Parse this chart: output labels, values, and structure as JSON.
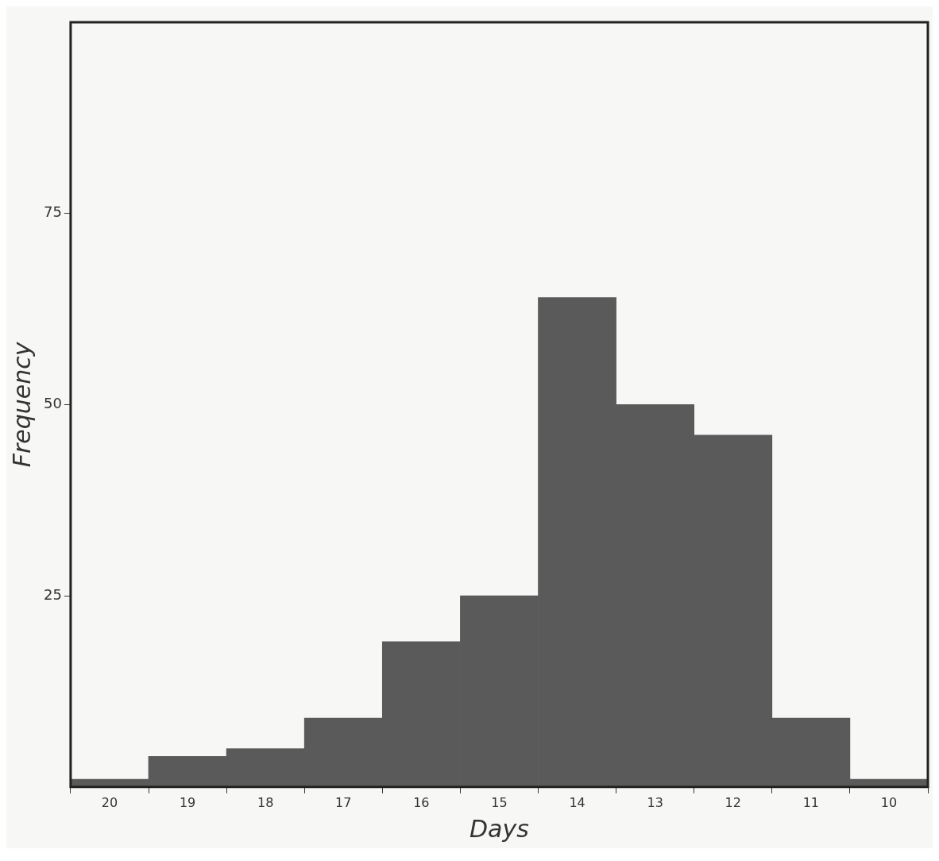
{
  "chart_data": {
    "type": "histogram",
    "xlabel": "Days",
    "ylabel": "Frequency",
    "bins": [
      20.5,
      19.5,
      18.5,
      17.5,
      16.5,
      15.5,
      14.5,
      13.5,
      12.5,
      11.5,
      10.5,
      9.5
    ],
    "values": [
      1,
      4,
      5,
      9,
      19,
      25,
      64,
      50,
      46,
      9,
      1
    ],
    "color": "#5a5a5a",
    "xlim": [
      20.5,
      9.5
    ],
    "xticks": [
      20,
      19,
      18,
      17,
      16,
      15,
      14,
      13,
      12,
      11,
      10
    ],
    "ylim": [
      0,
      100
    ],
    "yticks": [
      25,
      50,
      75
    ],
    "grid": false,
    "legend": false
  }
}
